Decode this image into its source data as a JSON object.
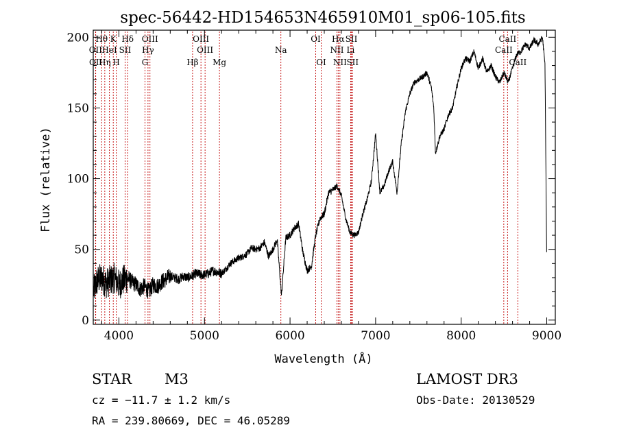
{
  "chart_data": {
    "type": "line",
    "title": "spec-56442-HD154653N465910M01_sp06-105.fits",
    "xlabel": "Wavelength (Å)",
    "ylabel": "Flux (relative)",
    "xlim": [
      3700,
      9100
    ],
    "ylim": [
      -3,
      205
    ],
    "xticks": [
      4000,
      5000,
      6000,
      7000,
      8000,
      9000
    ],
    "yticks": [
      0,
      50,
      100,
      150,
      200
    ],
    "xtick_labels": [
      "4000",
      "5000",
      "6000",
      "7000",
      "8000",
      "9000"
    ],
    "ytick_labels": [
      "0",
      "50",
      "100",
      "150",
      "200"
    ],
    "spectrum": {
      "name": "flux",
      "x": [
        3700,
        3750,
        3800,
        3850,
        3900,
        3950,
        4000,
        4050,
        4100,
        4150,
        4200,
        4250,
        4300,
        4350,
        4400,
        4450,
        4500,
        4550,
        4600,
        4650,
        4700,
        4750,
        4800,
        4850,
        4900,
        4950,
        5000,
        5050,
        5100,
        5150,
        5200,
        5250,
        5300,
        5350,
        5400,
        5450,
        5500,
        5550,
        5600,
        5650,
        5700,
        5750,
        5800,
        5850,
        5900,
        5950,
        6000,
        6050,
        6100,
        6150,
        6200,
        6250,
        6300,
        6350,
        6400,
        6450,
        6500,
        6550,
        6600,
        6650,
        6700,
        6750,
        6800,
        6850,
        6900,
        6950,
        7000,
        7050,
        7100,
        7150,
        7200,
        7250,
        7300,
        7350,
        7400,
        7450,
        7500,
        7550,
        7600,
        7650,
        7680,
        7700,
        7750,
        7800,
        7850,
        7900,
        7950,
        8000,
        8050,
        8100,
        8150,
        8200,
        8250,
        8300,
        8350,
        8400,
        8450,
        8500,
        8550,
        8600,
        8650,
        8700,
        8750,
        8800,
        8850,
        8900,
        8950,
        8980,
        9000
      ],
      "y": [
        20,
        28,
        30,
        26,
        28,
        30,
        25,
        28,
        30,
        27,
        25,
        22,
        24,
        20,
        25,
        24,
        27,
        29,
        31,
        30,
        29,
        31,
        30,
        31,
        33,
        32,
        32,
        33,
        35,
        34,
        33,
        36,
        40,
        42,
        44,
        45,
        47,
        51,
        50,
        51,
        55,
        45,
        50,
        57,
        17,
        58,
        60,
        65,
        68,
        48,
        35,
        38,
        60,
        72,
        75,
        90,
        92,
        95,
        88,
        72,
        62,
        60,
        62,
        75,
        85,
        98,
        132,
        90,
        95,
        105,
        112,
        90,
        125,
        148,
        160,
        168,
        170,
        172,
        175,
        165,
        150,
        118,
        130,
        135,
        145,
        150,
        165,
        178,
        185,
        183,
        190,
        178,
        185,
        175,
        180,
        172,
        168,
        175,
        168,
        178,
        188,
        190,
        195,
        192,
        198,
        195,
        200,
        180,
        40
      ],
      "color": "#000000"
    },
    "line_markers": [
      {
        "label": "Hθ",
        "wavelength": 3798,
        "row": 1
      },
      {
        "label": "OII",
        "wavelength": 3727,
        "row": 2
      },
      {
        "label": "OII",
        "wavelength": 3729,
        "row": 3
      },
      {
        "label": "Hη",
        "wavelength": 3835,
        "row": 3
      },
      {
        "label": "HeI",
        "wavelength": 3889,
        "row": 2
      },
      {
        "label": "K",
        "wavelength": 3934,
        "row": 1
      },
      {
        "label": "H",
        "wavelength": 3969,
        "row": 3
      },
      {
        "label": "SII",
        "wavelength": 4072,
        "row": 2
      },
      {
        "label": "Hδ",
        "wavelength": 4102,
        "row": 1
      },
      {
        "label": "OIII",
        "wavelength": 4363,
        "row": 1
      },
      {
        "label": "Hγ",
        "wavelength": 4340,
        "row": 2
      },
      {
        "label": "G",
        "wavelength": 4305,
        "row": 3
      },
      {
        "label": "Hβ",
        "wavelength": 4861,
        "row": 3
      },
      {
        "label": "OIII",
        "wavelength": 4959,
        "row": 1
      },
      {
        "label": "OIII",
        "wavelength": 5007,
        "row": 2
      },
      {
        "label": "Mg",
        "wavelength": 5175,
        "row": 3
      },
      {
        "label": "Na",
        "wavelength": 5893,
        "row": 2
      },
      {
        "label": "OI",
        "wavelength": 6300,
        "row": 1
      },
      {
        "label": "OI",
        "wavelength": 6364,
        "row": 3
      },
      {
        "label": "Hα",
        "wavelength": 6563,
        "row": 1
      },
      {
        "label": "NII",
        "wavelength": 6548,
        "row": 2
      },
      {
        "label": "NII",
        "wavelength": 6583,
        "row": 3
      },
      {
        "label": "SII",
        "wavelength": 6717,
        "row": 1
      },
      {
        "label": "Li",
        "wavelength": 6708,
        "row": 2
      },
      {
        "label": "SII",
        "wavelength": 6731,
        "row": 3
      },
      {
        "label": "CaII",
        "wavelength": 8542,
        "row": 1
      },
      {
        "label": "CaII",
        "wavelength": 8498,
        "row": 2
      },
      {
        "label": "CaII",
        "wavelength": 8662,
        "row": 3
      }
    ]
  },
  "info": {
    "class": "STAR",
    "subclass": "M3",
    "survey": "LAMOST DR3",
    "cz": "cz = −11.7 ± 1.2 km/s",
    "obs_date": "Obs-Date: 20130529",
    "coords": "RA = 239.80669, DEC =  46.05289"
  },
  "colors": {
    "axis": "#000000",
    "marker": "#c00000",
    "spectrum": "#000000"
  }
}
